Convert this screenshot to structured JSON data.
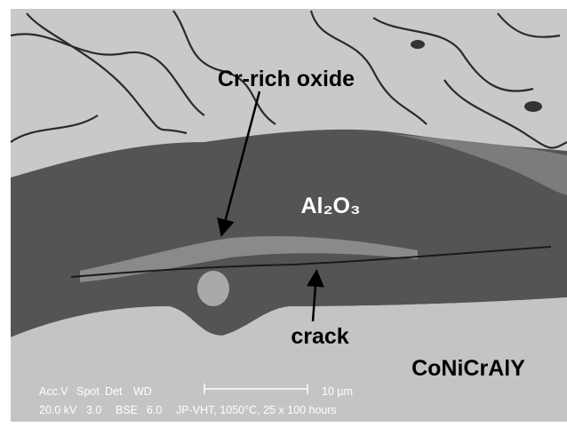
{
  "annotations": {
    "cr_rich_oxide": "Cr-rich oxide",
    "al2o3": "Al₂O₃",
    "crack": "crack",
    "coating": "CoNiCrAlY"
  },
  "info_bar": {
    "headers": [
      "Acc.V",
      "Spot",
      "Det",
      "WD"
    ],
    "values": [
      "20.0 kV",
      "3.0",
      "BSE",
      "6.0"
    ],
    "scale": "10 µm",
    "caption": "JP-VHT, 1050°C, 25 x 100 hours"
  }
}
